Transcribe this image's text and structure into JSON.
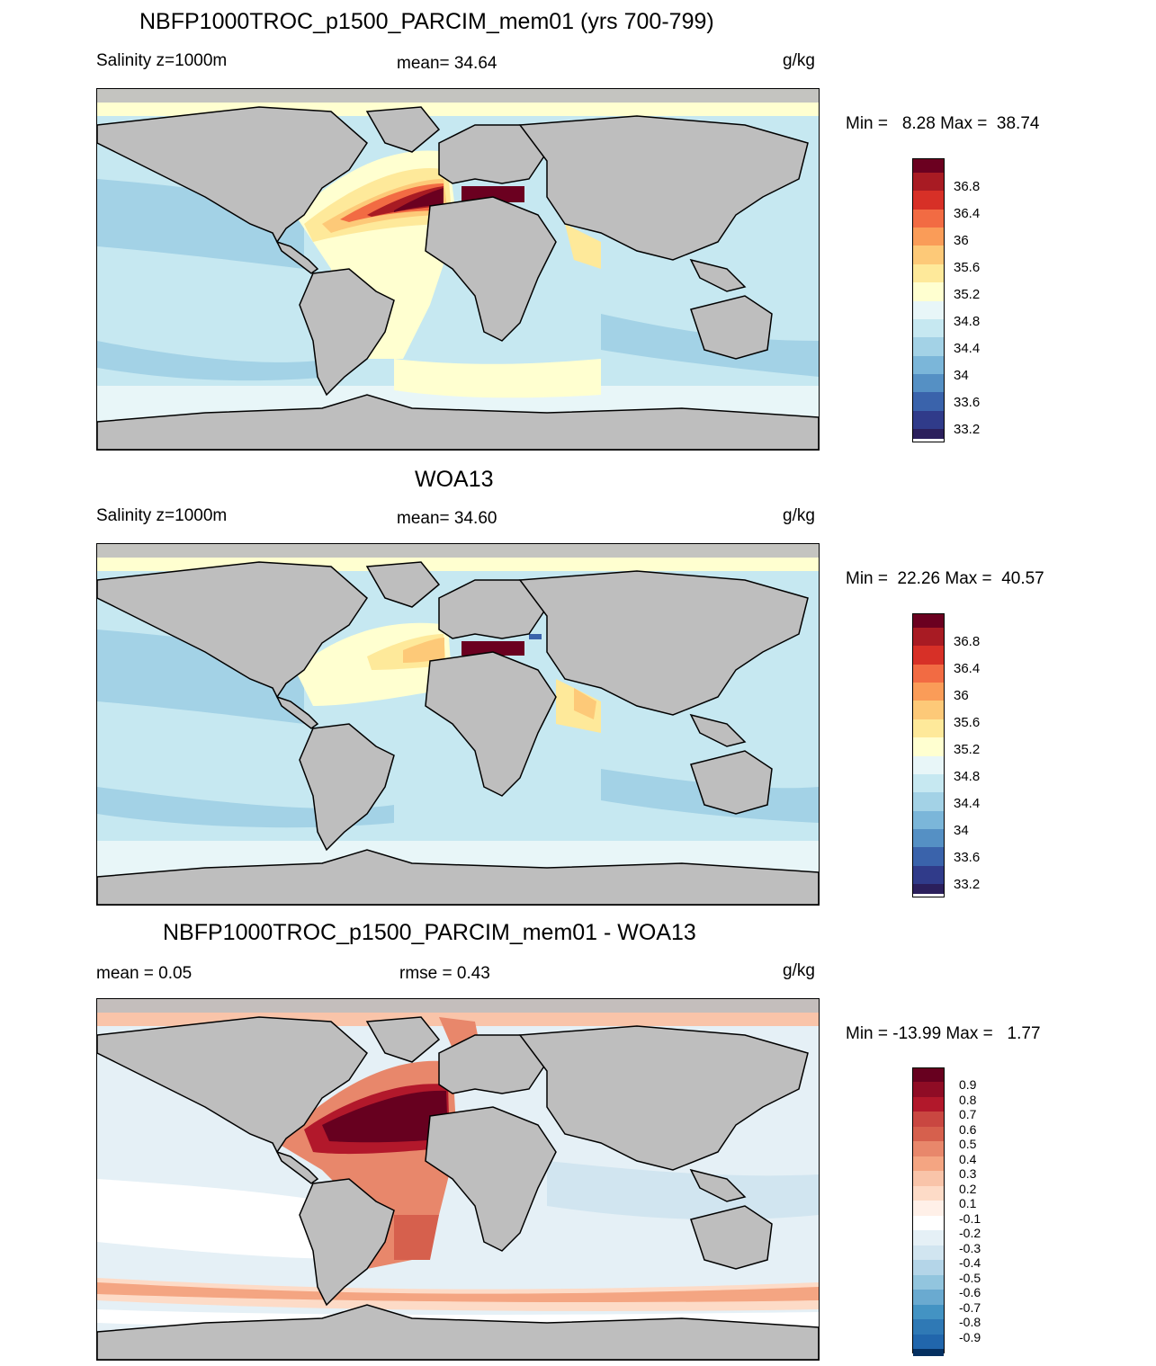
{
  "panels": [
    {
      "title": "NBFP1000TROC_p1500_PARCIM_mem01 (yrs 700-799)",
      "left_label": "Salinity z=1000m",
      "center_label": "mean=  34.64",
      "units": "g/kg",
      "minmax": "Min =   8.28 Max =  38.74",
      "colorbar": {
        "colors": [
          "#6b0020",
          "#a81b23",
          "#d73027",
          "#f26b43",
          "#fa9c58",
          "#fdc978",
          "#fee99a",
          "#ffffd0",
          "#e8f6f8",
          "#c6e8f1",
          "#a3d2e6",
          "#7bb6d9",
          "#5590c4",
          "#3a63ab",
          "#303b8a",
          "#2b1f5c"
        ],
        "labels": [
          "36.8",
          "36.4",
          "36",
          "35.6",
          "35.2",
          "34.8",
          "34.4",
          "34",
          "33.6",
          "33.2"
        ]
      }
    },
    {
      "title": "WOA13",
      "left_label": "Salinity z=1000m",
      "center_label": "mean=  34.60",
      "units": "g/kg",
      "minmax": "Min =  22.26 Max =  40.57",
      "colorbar": {
        "colors": [
          "#6b0020",
          "#a81b23",
          "#d73027",
          "#f26b43",
          "#fa9c58",
          "#fdc978",
          "#fee99a",
          "#ffffd0",
          "#e8f6f8",
          "#c6e8f1",
          "#a3d2e6",
          "#7bb6d9",
          "#5590c4",
          "#3a63ab",
          "#303b8a",
          "#2b1f5c"
        ],
        "labels": [
          "36.8",
          "36.4",
          "36",
          "35.6",
          "35.2",
          "34.8",
          "34.4",
          "34",
          "33.6",
          "33.2"
        ]
      }
    },
    {
      "title": "NBFP1000TROC_p1500_PARCIM_mem01 - WOA13",
      "left_label": "mean =   0.05",
      "center_label": "rmse =   0.43",
      "units": "g/kg",
      "minmax": "Min = -13.99 Max =   1.77",
      "colorbar": {
        "colors": [
          "#67001f",
          "#8f0c25",
          "#b2182b",
          "#c94741",
          "#d6604d",
          "#e8876b",
          "#f4a582",
          "#f9c4a9",
          "#fddbc7",
          "#fff0e8",
          "#ffffff",
          "#e5f0f6",
          "#d1e5f0",
          "#b4d5e8",
          "#92c5de",
          "#6aaad0",
          "#4393c3",
          "#2f79b5",
          "#2166ac",
          "#134b87",
          "#053061"
        ],
        "labels": [
          "0.9",
          "0.8",
          "0.7",
          "0.6",
          "0.5",
          "0.4",
          "0.3",
          "0.2",
          "0.1",
          "-0.1",
          "-0.2",
          "-0.3",
          "-0.4",
          "-0.5",
          "-0.6",
          "-0.7",
          "-0.8",
          "-0.9"
        ]
      }
    }
  ]
}
